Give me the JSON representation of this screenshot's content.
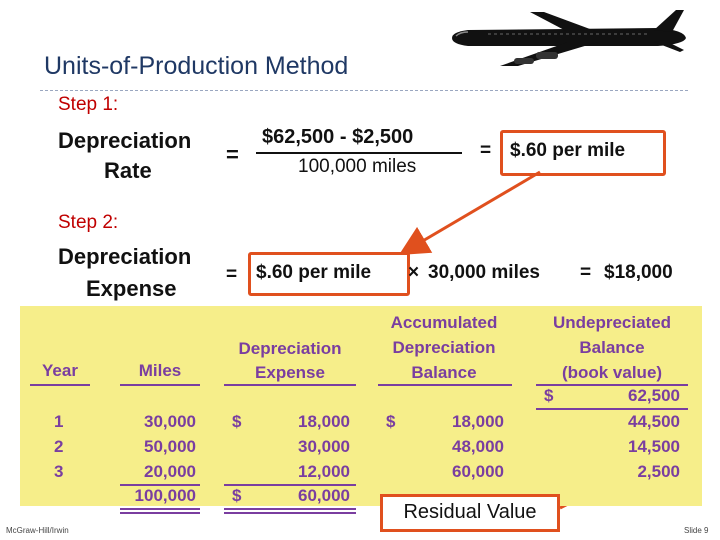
{
  "title": "Units-of-Production Method",
  "step1": {
    "label": "Step 1:",
    "term_line1": "Depreciation",
    "term_line2": "Rate",
    "equals": "=",
    "numerator": "$62,500 - $2,500",
    "denominator": "100,000 miles",
    "equals2": "=",
    "result": "$.60 per mile"
  },
  "step2": {
    "label": "Step 2:",
    "term_line1": "Depreciation",
    "term_line2": "Expense",
    "equals": "=",
    "rate": "$.60 per mile",
    "times": "×",
    "miles": "30,000 miles",
    "equals2": "=",
    "result": "$18,000"
  },
  "table": {
    "headers": {
      "year": "Year",
      "miles": "Miles",
      "dep_l1": "Depreciation",
      "dep_l2": "Expense",
      "acc_l1": "Accumulated",
      "acc_l2": "Depreciation",
      "acc_l3": "Balance",
      "und_l1": "Undepreciated",
      "und_l2": "Balance",
      "und_l3": "(book value)"
    },
    "initial": {
      "currency": "$",
      "book_value": "62,500"
    },
    "rows": [
      {
        "year": "1",
        "miles": "30,000",
        "dep_cur": "$",
        "dep": "18,000",
        "acc_cur": "$",
        "acc": "18,000",
        "book": "44,500"
      },
      {
        "year": "2",
        "miles": "50,000",
        "dep_cur": "",
        "dep": "30,000",
        "acc_cur": "",
        "acc": "48,000",
        "book": "14,500"
      },
      {
        "year": "3",
        "miles": "20,000",
        "dep_cur": "",
        "dep": "12,000",
        "acc_cur": "",
        "acc": "60,000",
        "book": "2,500"
      }
    ],
    "totals": {
      "miles": "100,000",
      "dep_cur": "$",
      "dep": "60,000"
    }
  },
  "residual_label": "Residual Value",
  "footer": {
    "left": "McGraw-Hill/Irwin",
    "right": "Slide 9"
  },
  "colors": {
    "accent": "#e0501e",
    "step": "#c00000",
    "table_bg": "#f6ee8a",
    "table_text": "#7a3ea0",
    "title": "#1f3864"
  },
  "icons": {
    "header_image": "airplane-icon"
  }
}
